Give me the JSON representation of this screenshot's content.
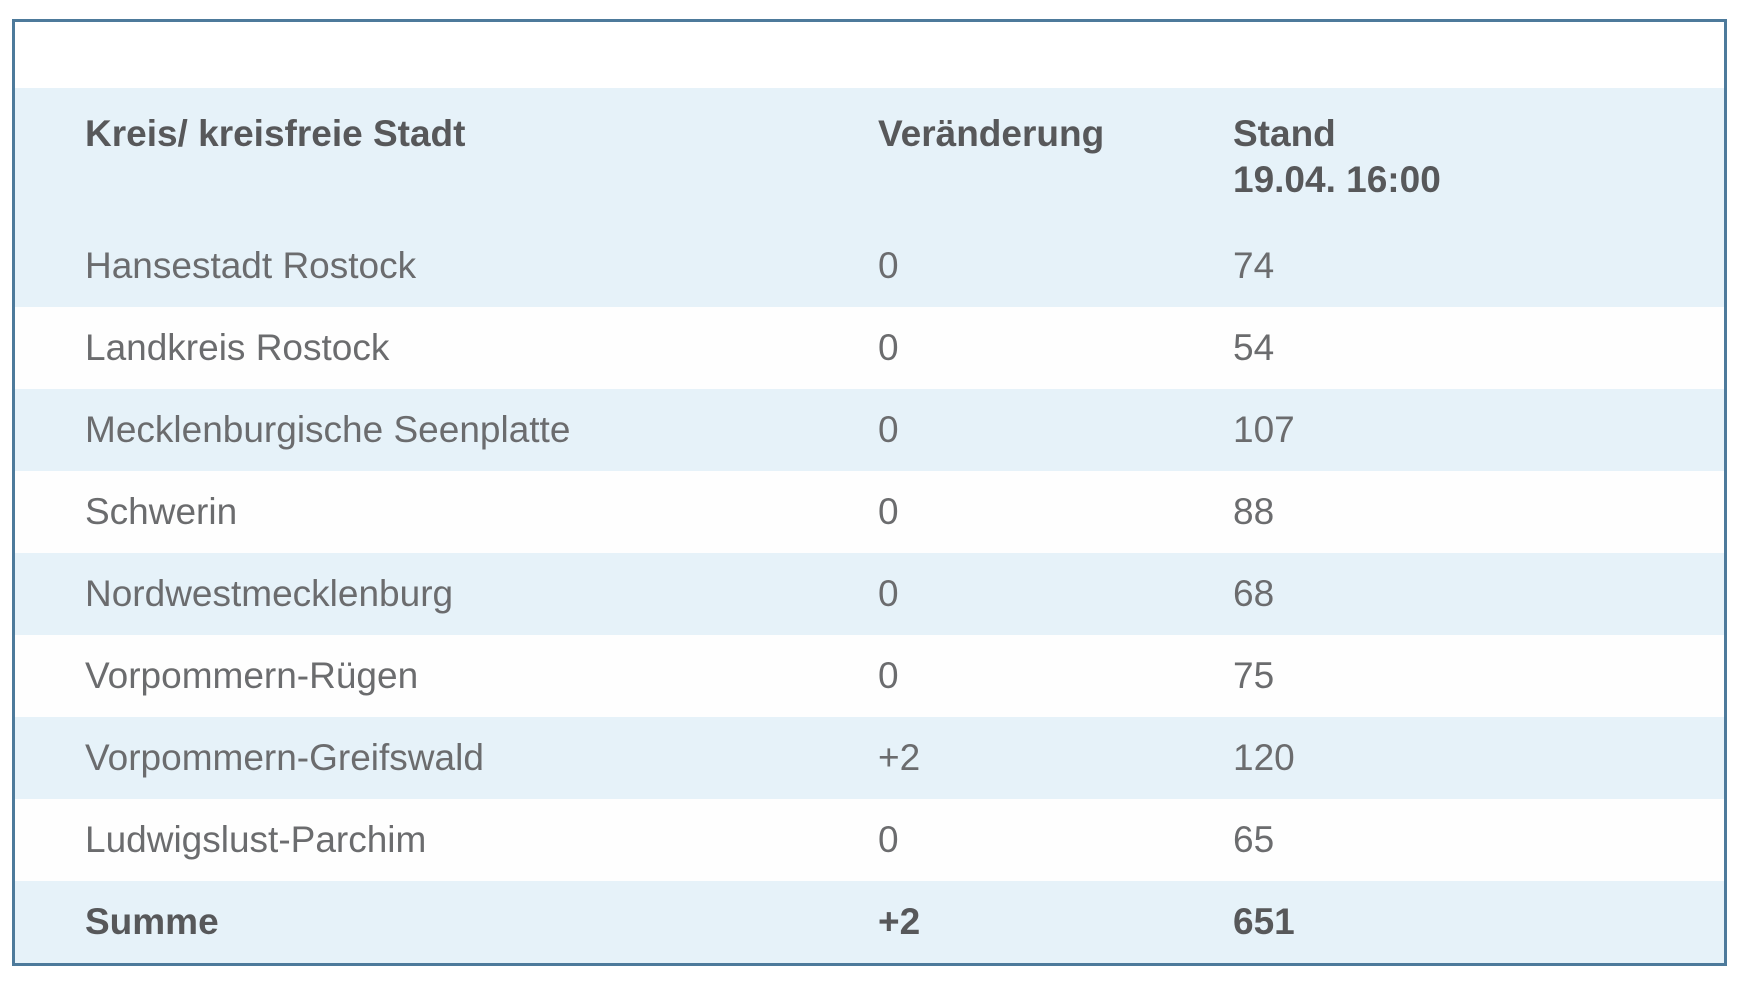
{
  "colors": {
    "frame_border": "#4d7a9b",
    "row_highlight": "#e6f2f9",
    "row_plain": "#fefefe",
    "header_text": "#57585a",
    "body_text": "#6b6c6e"
  },
  "header": {
    "col1": "Kreis/ kreisfreie Stadt",
    "col2": "Veränderung",
    "col3_line1": "Stand",
    "col3_line2": "19.04. 16:00"
  },
  "chart_data": {
    "type": "table",
    "columns": [
      "Kreis/ kreisfreie Stadt",
      "Veränderung",
      "Stand 19.04. 16:00"
    ],
    "rows": [
      [
        "Hansestadt Rostock",
        "0",
        "74"
      ],
      [
        "Landkreis Rostock",
        "0",
        "54"
      ],
      [
        "Mecklenburgische Seenplatte",
        "0",
        "107"
      ],
      [
        "Schwerin",
        "0",
        "88"
      ],
      [
        "Nordwestmecklenburg",
        "0",
        "68"
      ],
      [
        "Vorpommern-Rügen",
        "0",
        "75"
      ],
      [
        "Vorpommern-Greifswald",
        "+2",
        "120"
      ],
      [
        "Ludwigslust-Parchim",
        "0",
        "65"
      ]
    ],
    "summary_row": [
      "Summe",
      "+2",
      "651"
    ]
  }
}
